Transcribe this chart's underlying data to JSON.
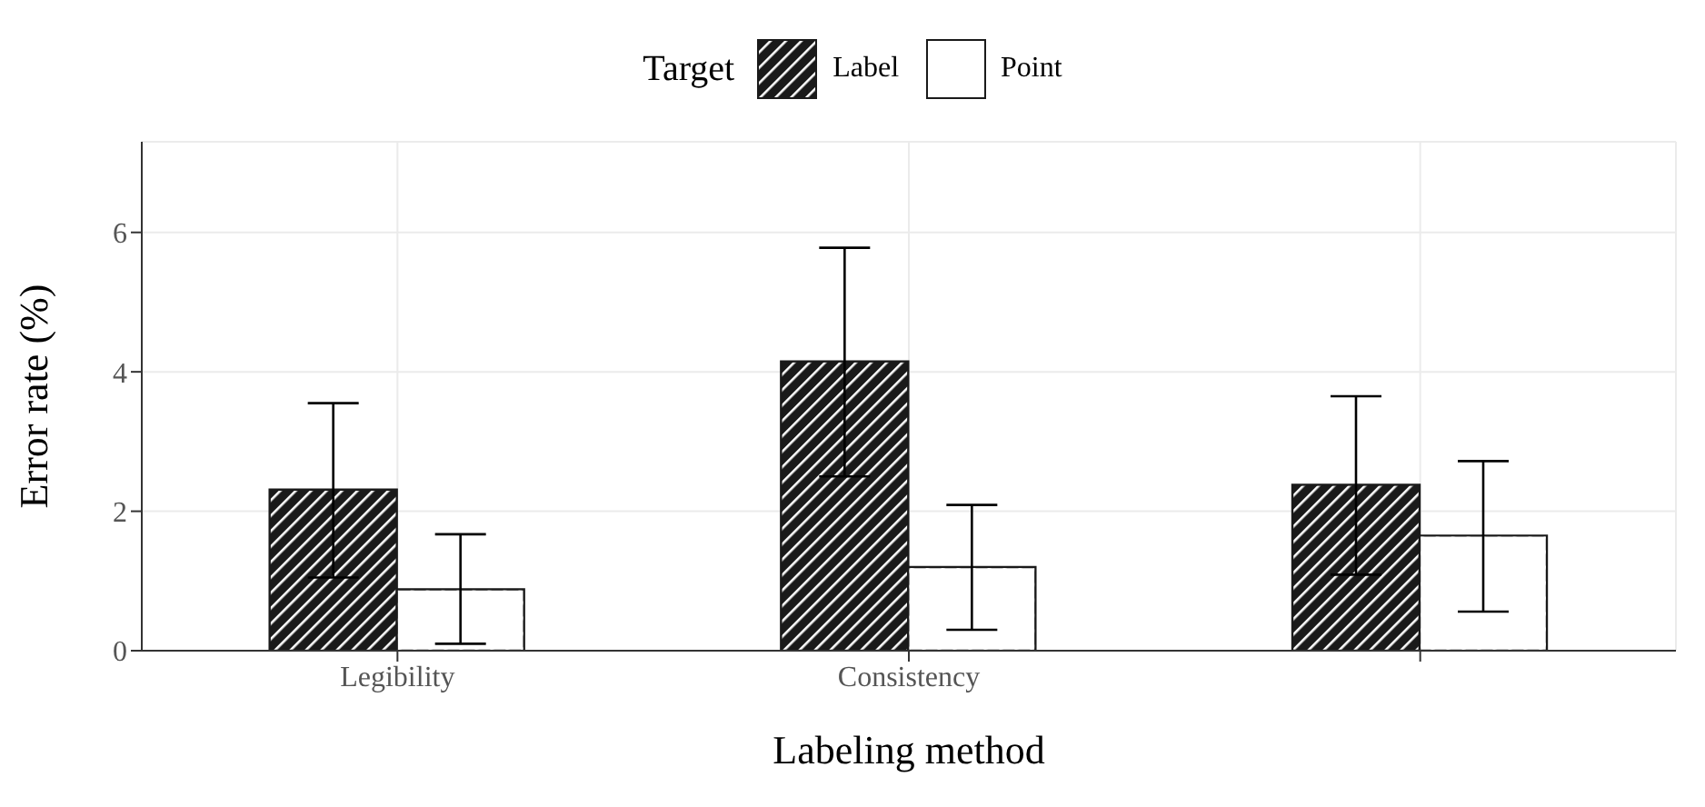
{
  "chart_data": {
    "type": "bar",
    "xlabel": "Labeling method",
    "ylabel": "Error rate (%)",
    "legend_title": "Target",
    "categories": [
      "Legibility",
      "Consistency",
      null
    ],
    "series": [
      {
        "name": "Label",
        "color": "#1a1a1a",
        "values": [
          2.31,
          4.15,
          2.38
        ],
        "errors": [
          [
            1.05,
            3.55
          ],
          [
            2.5,
            5.78
          ],
          [
            1.09,
            3.65
          ]
        ]
      },
      {
        "name": "Point",
        "color": "#ffffff",
        "values": [
          0.88,
          1.2,
          1.65
        ],
        "errors": [
          [
            0.1,
            1.67
          ],
          [
            0.3,
            2.09
          ],
          [
            0.56,
            2.72
          ]
        ]
      }
    ],
    "ylim": [
      0,
      7.3
    ],
    "yticks": [
      0,
      2,
      4,
      6
    ],
    "grid": true,
    "legend": "top"
  }
}
